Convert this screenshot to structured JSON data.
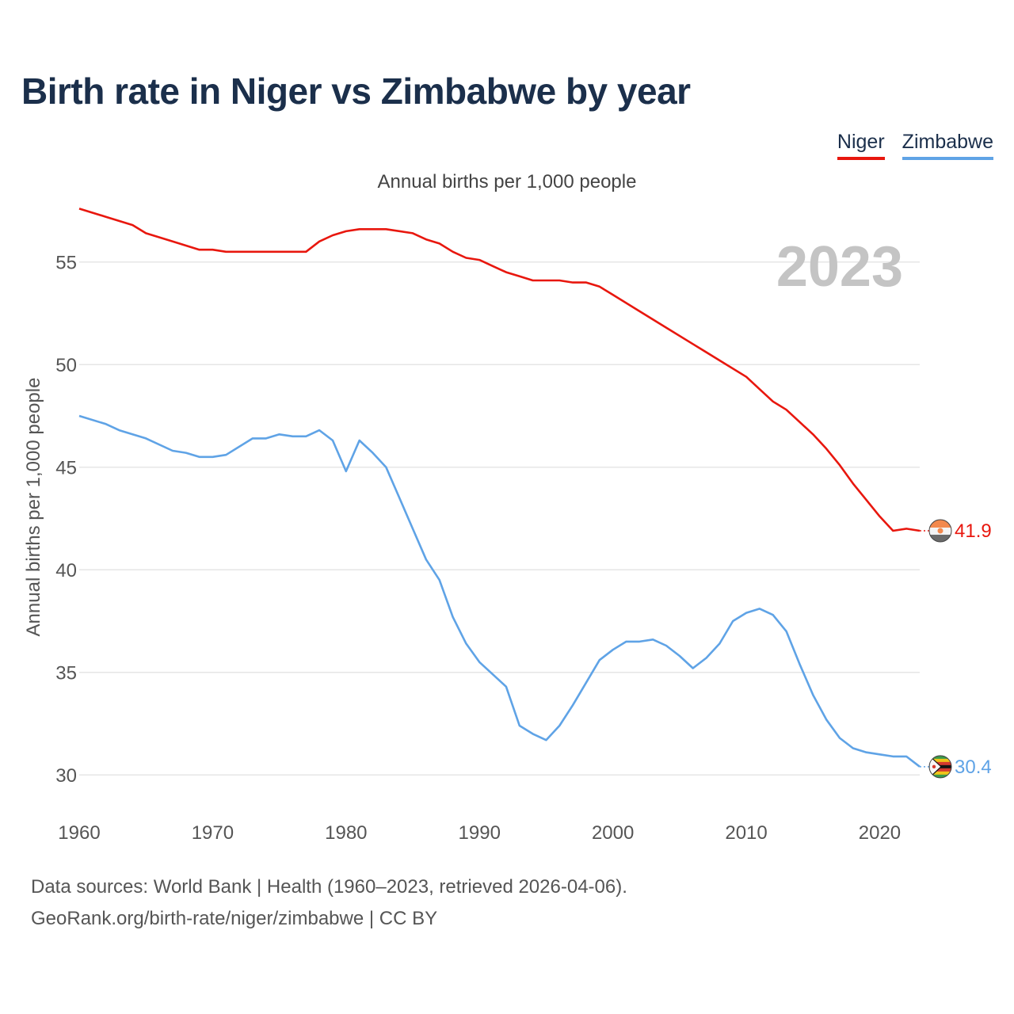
{
  "chart_data": {
    "type": "line",
    "title": "Birth rate in Niger vs Zimbabwe by year",
    "subtitle": "Annual births per 1,000 people",
    "ylabel": "Annual births per 1,000 people",
    "xlabel": "",
    "year_label": "2023",
    "xlim": [
      1960,
      2023
    ],
    "ylim": [
      28,
      58
    ],
    "x_ticks": [
      1960,
      1970,
      1980,
      1990,
      2000,
      2010,
      2020
    ],
    "y_ticks": [
      30,
      35,
      40,
      45,
      50,
      55
    ],
    "grid": true,
    "legend_position": "top-right",
    "series": [
      {
        "name": "Niger",
        "color": "#e8170e",
        "end_label": "41.9",
        "points": [
          [
            1960,
            57.6
          ],
          [
            1962,
            57.2
          ],
          [
            1964,
            56.8
          ],
          [
            1965,
            56.4
          ],
          [
            1967,
            56.0
          ],
          [
            1969,
            55.6
          ],
          [
            1970,
            55.6
          ],
          [
            1971,
            55.5
          ],
          [
            1973,
            55.5
          ],
          [
            1975,
            55.5
          ],
          [
            1977,
            55.5
          ],
          [
            1978,
            56.0
          ],
          [
            1979,
            56.3
          ],
          [
            1980,
            56.5
          ],
          [
            1981,
            56.6
          ],
          [
            1983,
            56.6
          ],
          [
            1985,
            56.4
          ],
          [
            1986,
            56.1
          ],
          [
            1987,
            55.9
          ],
          [
            1988,
            55.5
          ],
          [
            1989,
            55.2
          ],
          [
            1990,
            55.1
          ],
          [
            1991,
            54.8
          ],
          [
            1992,
            54.5
          ],
          [
            1993,
            54.3
          ],
          [
            1994,
            54.1
          ],
          [
            1995,
            54.1
          ],
          [
            1996,
            54.1
          ],
          [
            1997,
            54.0
          ],
          [
            1998,
            54.0
          ],
          [
            1999,
            53.8
          ],
          [
            2000,
            53.4
          ],
          [
            2002,
            52.6
          ],
          [
            2004,
            51.8
          ],
          [
            2006,
            51.0
          ],
          [
            2008,
            50.2
          ],
          [
            2010,
            49.4
          ],
          [
            2011,
            48.8
          ],
          [
            2012,
            48.2
          ],
          [
            2013,
            47.8
          ],
          [
            2014,
            47.2
          ],
          [
            2015,
            46.6
          ],
          [
            2016,
            45.9
          ],
          [
            2017,
            45.1
          ],
          [
            2018,
            44.2
          ],
          [
            2019,
            43.4
          ],
          [
            2020,
            42.6
          ],
          [
            2021,
            41.9
          ],
          [
            2022,
            42.0
          ],
          [
            2023,
            41.9
          ]
        ]
      },
      {
        "name": "Zimbabwe",
        "color": "#5fa3e6",
        "end_label": "30.4",
        "points": [
          [
            1960,
            47.5
          ],
          [
            1962,
            47.1
          ],
          [
            1963,
            46.8
          ],
          [
            1965,
            46.4
          ],
          [
            1967,
            45.8
          ],
          [
            1968,
            45.7
          ],
          [
            1969,
            45.5
          ],
          [
            1970,
            45.5
          ],
          [
            1971,
            45.6
          ],
          [
            1973,
            46.4
          ],
          [
            1974,
            46.4
          ],
          [
            1975,
            46.6
          ],
          [
            1976,
            46.5
          ],
          [
            1977,
            46.5
          ],
          [
            1978,
            46.8
          ],
          [
            1979,
            46.3
          ],
          [
            1980,
            44.8
          ],
          [
            1981,
            46.3
          ],
          [
            1982,
            45.7
          ],
          [
            1983,
            45.0
          ],
          [
            1984,
            43.5
          ],
          [
            1985,
            42.0
          ],
          [
            1986,
            40.5
          ],
          [
            1987,
            39.5
          ],
          [
            1988,
            37.7
          ],
          [
            1989,
            36.4
          ],
          [
            1990,
            35.5
          ],
          [
            1991,
            34.9
          ],
          [
            1992,
            34.3
          ],
          [
            1993,
            32.4
          ],
          [
            1994,
            32.0
          ],
          [
            1995,
            31.7
          ],
          [
            1996,
            32.4
          ],
          [
            1997,
            33.4
          ],
          [
            1998,
            34.5
          ],
          [
            1999,
            35.6
          ],
          [
            2000,
            36.1
          ],
          [
            2001,
            36.5
          ],
          [
            2002,
            36.5
          ],
          [
            2003,
            36.6
          ],
          [
            2004,
            36.3
          ],
          [
            2005,
            35.8
          ],
          [
            2006,
            35.2
          ],
          [
            2007,
            35.7
          ],
          [
            2008,
            36.4
          ],
          [
            2009,
            37.5
          ],
          [
            2010,
            37.9
          ],
          [
            2011,
            38.1
          ],
          [
            2012,
            37.8
          ],
          [
            2013,
            37.0
          ],
          [
            2014,
            35.4
          ],
          [
            2015,
            33.9
          ],
          [
            2016,
            32.7
          ],
          [
            2017,
            31.8
          ],
          [
            2018,
            31.3
          ],
          [
            2019,
            31.1
          ],
          [
            2020,
            31.0
          ],
          [
            2021,
            30.9
          ],
          [
            2022,
            30.9
          ],
          [
            2023,
            30.4
          ]
        ]
      }
    ]
  },
  "legend": {
    "niger": "Niger",
    "zimbabwe": "Zimbabwe"
  },
  "footer": {
    "sources": "Data sources: World Bank | Health (1960–2023, retrieved 2026-04-06).",
    "link": "GeoRank.org/birth-rate/niger/zimbabwe | CC BY"
  }
}
